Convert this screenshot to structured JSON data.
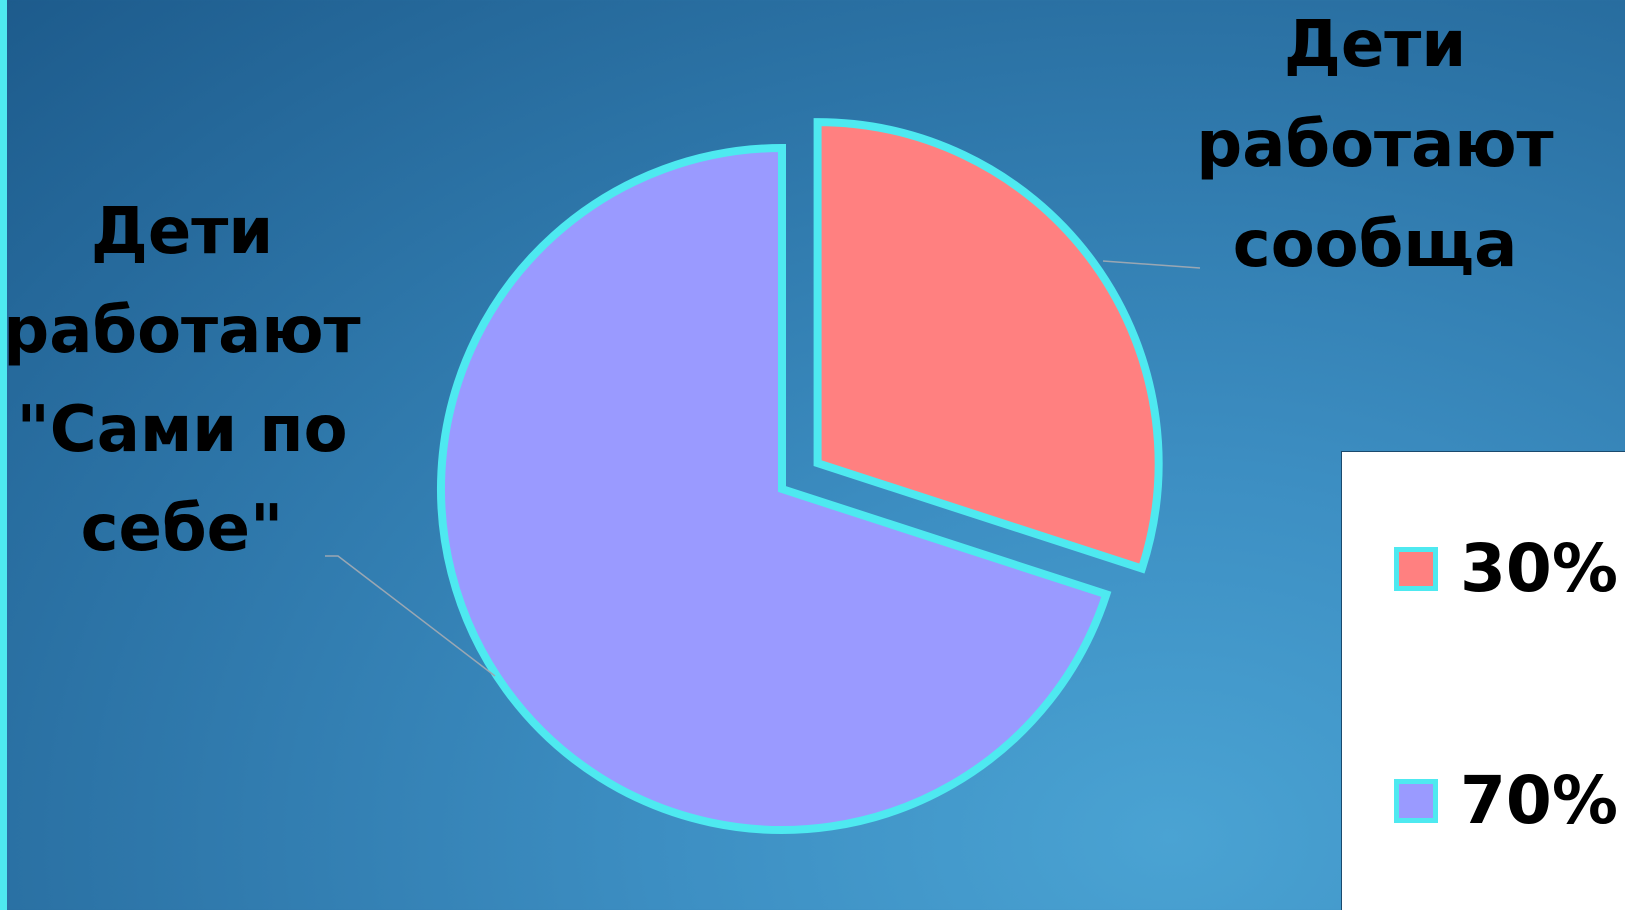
{
  "chart_data": {
    "type": "pie",
    "categories": [
      "Дети работают сообща",
      "Дети работают \"Сами по себе\""
    ],
    "values": [
      30,
      70
    ],
    "slice_labels": [
      [
        "Дети",
        "работают",
        "сообща"
      ],
      [
        "Дети",
        "работают",
        "\"Сами по",
        "себе\""
      ]
    ],
    "legend": [
      "30%",
      "70%"
    ],
    "legend_position": "right",
    "exploded_slice": 0,
    "colors": [
      "#ff8080",
      "#9a9aff"
    ],
    "outline_color": "#4ee9f0",
    "leader_line_color": "#9aa7b3"
  }
}
